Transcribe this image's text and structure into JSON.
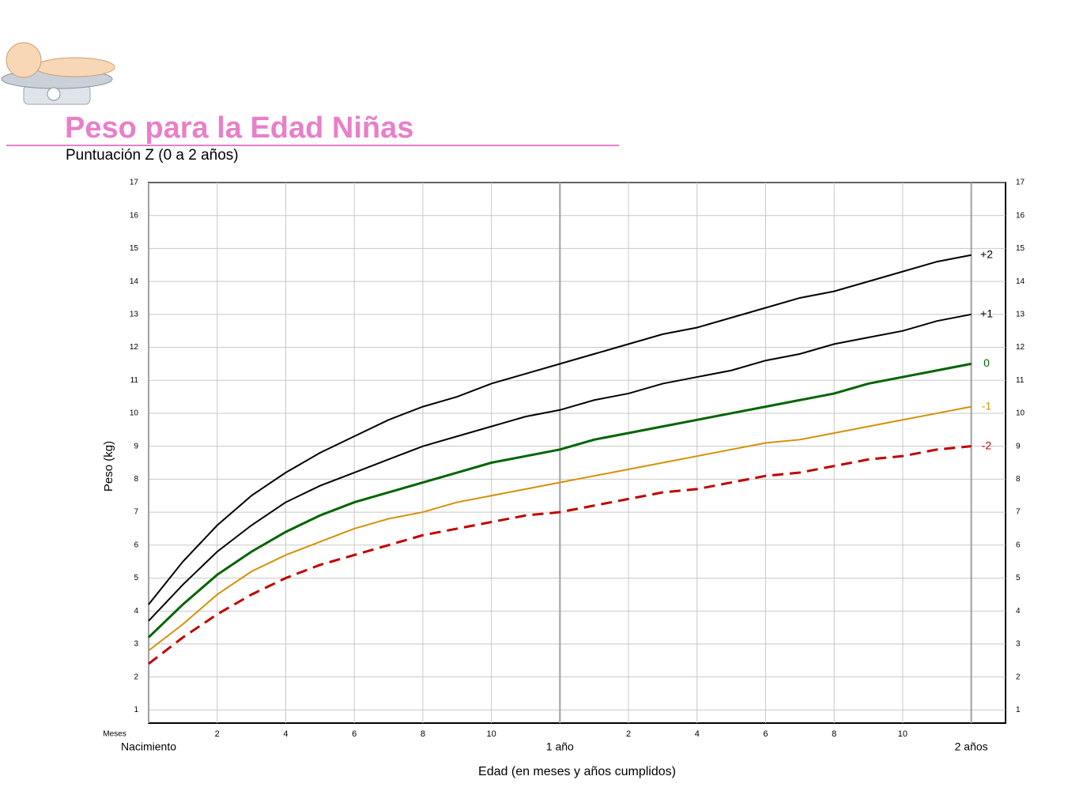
{
  "title": "Peso para la Edad Niñas",
  "subtitle": "Puntuación Z (0 a 2 años)",
  "chart_data": {
    "type": "line",
    "ylabel": "Peso (kg)",
    "xlabel": "Edad (en meses y años cumplidos)",
    "x_unit_label": "Meses",
    "x": [
      0,
      1,
      2,
      3,
      4,
      5,
      6,
      7,
      8,
      9,
      10,
      11,
      12,
      13,
      14,
      15,
      16,
      17,
      18,
      19,
      20,
      21,
      22,
      23,
      24
    ],
    "xlim": [
      0,
      25
    ],
    "ylim": [
      0.6,
      17
    ],
    "xticks": [
      2,
      4,
      6,
      8,
      10,
      {
        "value": 14,
        "label": "2"
      },
      {
        "value": 16,
        "label": "4"
      },
      {
        "value": 18,
        "label": "6"
      },
      {
        "value": 20,
        "label": "8"
      },
      {
        "value": 22,
        "label": "10"
      }
    ],
    "x_major_ticks": [
      {
        "value": 0,
        "label": "Nacimiento"
      },
      {
        "value": 12,
        "label": "1 año"
      },
      {
        "value": 24,
        "label": "2 años"
      }
    ],
    "yticks": [
      1,
      2,
      3,
      4,
      5,
      6,
      7,
      8,
      9,
      10,
      11,
      12,
      13,
      14,
      15,
      16,
      17
    ],
    "grid": true,
    "series": [
      {
        "name": "+2",
        "color": "#000000",
        "dashed": false,
        "values": [
          4.2,
          5.5,
          6.6,
          7.5,
          8.2,
          8.8,
          9.3,
          9.8,
          10.2,
          10.5,
          10.9,
          11.2,
          11.5,
          11.8,
          12.1,
          12.4,
          12.6,
          12.9,
          13.2,
          13.5,
          13.7,
          14.0,
          14.3,
          14.6,
          14.8
        ]
      },
      {
        "name": "+1",
        "color": "#000000",
        "dashed": false,
        "values": [
          3.7,
          4.8,
          5.8,
          6.6,
          7.3,
          7.8,
          8.2,
          8.6,
          9.0,
          9.3,
          9.6,
          9.9,
          10.1,
          10.4,
          10.6,
          10.9,
          11.1,
          11.3,
          11.6,
          11.8,
          12.1,
          12.3,
          12.5,
          12.8,
          13.0
        ]
      },
      {
        "name": "0",
        "color": "#006400",
        "dashed": false,
        "values": [
          3.2,
          4.2,
          5.1,
          5.8,
          6.4,
          6.9,
          7.3,
          7.6,
          7.9,
          8.2,
          8.5,
          8.7,
          8.9,
          9.2,
          9.4,
          9.6,
          9.8,
          10.0,
          10.2,
          10.4,
          10.6,
          10.9,
          11.1,
          11.3,
          11.5
        ]
      },
      {
        "name": "-1",
        "color": "#d4900a",
        "dashed": false,
        "values": [
          2.8,
          3.6,
          4.5,
          5.2,
          5.7,
          6.1,
          6.5,
          6.8,
          7.0,
          7.3,
          7.5,
          7.7,
          7.9,
          8.1,
          8.3,
          8.5,
          8.7,
          8.9,
          9.1,
          9.2,
          9.4,
          9.6,
          9.8,
          10.0,
          10.2
        ]
      },
      {
        "name": "-2",
        "color": "#c00000",
        "dashed": true,
        "values": [
          2.4,
          3.2,
          3.9,
          4.5,
          5.0,
          5.4,
          5.7,
          6.0,
          6.3,
          6.5,
          6.7,
          6.9,
          7.0,
          7.2,
          7.4,
          7.6,
          7.7,
          7.9,
          8.1,
          8.2,
          8.4,
          8.6,
          8.7,
          8.9,
          9.0
        ]
      }
    ]
  }
}
